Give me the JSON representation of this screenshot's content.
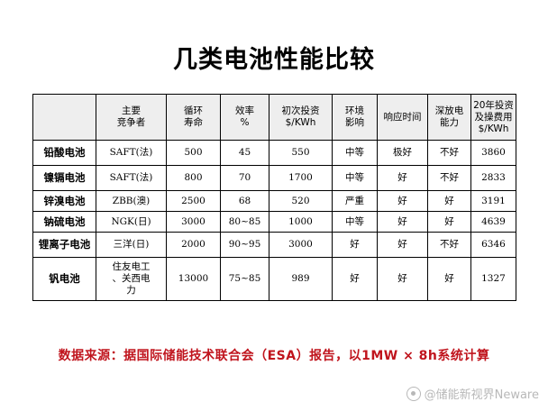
{
  "title": "几类电池性能比较",
  "table": {
    "headers": [
      "",
      "主要\n竞争者",
      "循环\n寿命",
      "效率\n%",
      "初次投资\n$/KWh",
      "环境\n影响",
      "响应时间",
      "深放电\n能力",
      "20年投资\n及操费用\n$/KWh"
    ],
    "rows": [
      [
        "铅酸电池",
        "SAFT(法)",
        "500",
        "45",
        "550",
        "中等",
        "极好",
        "不好",
        "3860"
      ],
      [
        "镍镉电池",
        "SAFT(法)",
        "800",
        "70",
        "1700",
        "中等",
        "好",
        "不好",
        "2833"
      ],
      [
        "锌溴电池",
        "ZBB(澳)",
        "2500",
        "68",
        "520",
        "严重",
        "好",
        "好",
        "3191"
      ],
      [
        "钠硫电池",
        "NGK(日)",
        "3000",
        "80~85",
        "1000",
        "中等",
        "好",
        "好",
        "4639"
      ],
      [
        "锂离子电池",
        "三洋(日)",
        "2000",
        "90~95",
        "3000",
        "好",
        "好",
        "不好",
        "6346"
      ],
      [
        "钒电池",
        "住友电工\n、关西电\n力",
        "13000",
        "75~85",
        "989",
        "好",
        "好",
        "好",
        "1327"
      ]
    ]
  },
  "source_note": "数据来源：据国际储能技术联合会（ESA）报告，以1MW × 8h系统计算",
  "watermark": "@储能新视界Neware",
  "icon": "watermark-logo-icon"
}
